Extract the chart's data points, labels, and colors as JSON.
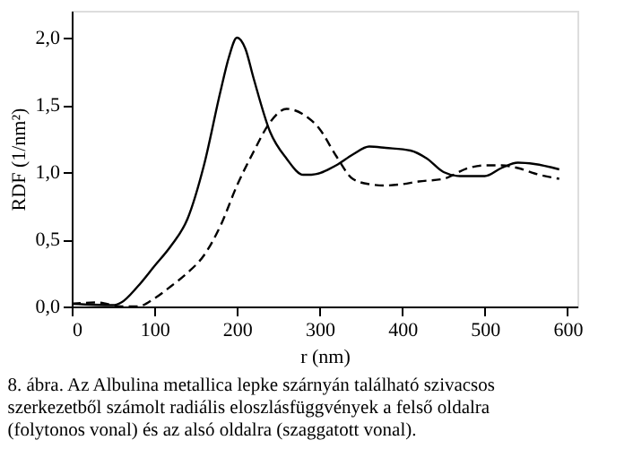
{
  "chart_data": {
    "type": "line",
    "xlabel": "r (nm)",
    "ylabel": "RDF (1/nm²)",
    "xlim": [
      0,
      612
    ],
    "xticks": [
      0,
      100,
      200,
      300,
      400,
      500,
      600
    ],
    "ylim": [
      0,
      2.2
    ],
    "yticks": [
      {
        "value": 0,
        "label": "0,0"
      },
      {
        "value": 0.5,
        "label": "0,5"
      },
      {
        "value": 1,
        "label": "1,0"
      },
      {
        "value": 1.5,
        "label": "1,5"
      },
      {
        "value": 2,
        "label": "2,0"
      }
    ],
    "grid": false,
    "marker": "none",
    "series": [
      {
        "color": "#000000",
        "line_style": "solid",
        "x": [
          0,
          50,
          60,
          80,
          100,
          120,
          140,
          160,
          180,
          190,
          200,
          210,
          220,
          240,
          260,
          280,
          290,
          320,
          340,
          360,
          380,
          410,
          430,
          450,
          470,
          500,
          520,
          540,
          560,
          590
        ],
        "values": [
          0.02,
          0.01,
          0.03,
          0.15,
          0.3,
          0.45,
          0.65,
          1.05,
          1.6,
          1.85,
          2.0,
          1.92,
          1.7,
          1.3,
          1.1,
          0.98,
          0.98,
          1.05,
          1.13,
          1.19,
          1.18,
          1.16,
          1.1,
          1.0,
          0.97,
          0.97,
          1.03,
          1.07,
          1.06,
          1.02
        ]
      },
      {
        "color": "#000000",
        "line_style": "dashed",
        "x": [
          0,
          30,
          60,
          80,
          100,
          120,
          140,
          160,
          180,
          200,
          220,
          240,
          260,
          280,
          300,
          320,
          340,
          360,
          380,
          400,
          420,
          450,
          480,
          500,
          520,
          540,
          560,
          590
        ],
        "values": [
          0.02,
          0.03,
          0.0,
          0.0,
          0.06,
          0.15,
          0.25,
          0.38,
          0.6,
          0.9,
          1.15,
          1.37,
          1.47,
          1.43,
          1.32,
          1.12,
          0.95,
          0.91,
          0.9,
          0.91,
          0.93,
          0.95,
          1.03,
          1.05,
          1.05,
          1.03,
          0.99,
          0.95
        ]
      }
    ],
    "annotations": [
      "8. ábra. Az Albulina metallica lepke szárnyán található szivacsos",
      "szerkezetből számolt radiális eloszlásfüggvények a felső oldalra",
      "(folytonos vonal) és az alsó oldalra (szaggatott vonal)."
    ]
  }
}
